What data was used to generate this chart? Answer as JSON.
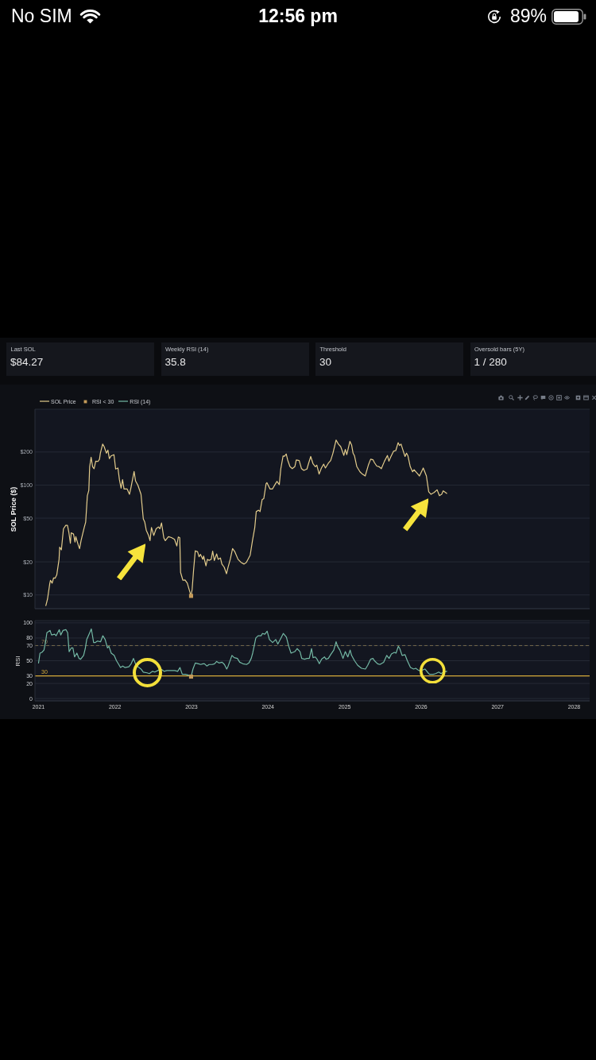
{
  "chart_data": [
    {
      "type": "other",
      "annotations": [
        "No SIM",
        "12:56 pm",
        "89%"
      ]
    },
    {
      "type": "other",
      "categories": [
        "Last SOL",
        "Weekly RSI (14)",
        "Threshold",
        "Oversold bars (5Y)"
      ],
      "value_labels": [
        "$84.27",
        "35.8",
        "30",
        "1 / 280"
      ]
    },
    {
      "type": "line",
      "ylabel": "SOL Price ($)",
      "log": "y",
      "xlim": [
        "2020-12-15",
        "2028-03-15"
      ],
      "ylim": [
        7.5,
        490
      ],
      "yticks": [
        {
          "value": 10,
          "label": "$10"
        },
        {
          "value": 20,
          "label": "$20"
        },
        {
          "value": 50,
          "label": "$50"
        },
        {
          "value": 100,
          "label": "$100"
        },
        {
          "value": 200,
          "label": "$200"
        }
      ],
      "grid": "y",
      "legend": "top left",
      "tick_labels": "y",
      "series": [
        {
          "name": "SOL Price",
          "color": "#e3cc8c",
          "x": [
            "2021-02-05",
            "2021-02-13",
            "2021-02-24",
            "2021-02-27",
            "2021-03-07",
            "2021-03-14",
            "2021-03-21",
            "2021-03-29",
            "2021-04-09",
            "2021-04-12",
            "2021-04-20",
            "2021-04-30",
            "2021-05-11",
            "2021-05-19",
            "2021-05-26",
            "2021-06-02",
            "2021-06-06",
            "2021-06-17",
            "2021-06-24",
            "2021-06-28",
            "2021-07-09",
            "2021-07-16",
            "2021-07-23",
            "2021-08-07",
            "2021-08-14",
            "2021-08-22",
            "2021-08-29",
            "2021-09-02",
            "2021-09-09",
            "2021-09-16",
            "2021-09-23",
            "2021-10-01",
            "2021-10-12",
            "2021-10-19",
            "2021-10-23",
            "2021-11-03",
            "2021-11-10",
            "2021-11-21",
            "2021-11-28",
            "2021-12-05",
            "2021-12-13",
            "2021-12-27",
            "2022-01-04",
            "2022-01-15",
            "2022-01-22",
            "2022-01-30",
            "2022-02-06",
            "2022-02-13",
            "2022-02-28",
            "2022-03-11",
            "2022-03-18",
            "2022-04-02",
            "2022-04-09",
            "2022-04-20",
            "2022-05-05",
            "2022-05-16",
            "2022-05-23",
            "2022-05-30",
            "2022-06-10",
            "2022-06-17",
            "2022-06-24",
            "2022-07-05",
            "2022-07-16",
            "2022-07-27",
            "2022-08-03",
            "2022-08-11",
            "2022-08-22",
            "2022-08-29",
            "2022-09-13",
            "2022-09-27",
            "2022-10-12",
            "2022-10-23",
            "2022-10-30",
            "2022-11-06",
            "2022-11-10",
            "2022-11-21",
            "2022-12-01",
            "2022-12-12",
            "2022-12-19",
            "2022-12-30",
            "2023-01-04",
            "2023-01-11",
            "2023-01-19",
            "2023-01-30",
            "2023-02-06",
            "2023-02-13",
            "2023-02-24",
            "2023-02-28",
            "2023-03-11",
            "2023-03-18",
            "2023-03-26",
            "2023-04-05",
            "2023-04-12",
            "2023-04-20",
            "2023-05-01",
            "2023-05-08",
            "2023-05-19",
            "2023-05-26",
            "2023-06-06",
            "2023-06-17",
            "2023-06-24",
            "2023-07-05",
            "2023-07-16",
            "2023-07-27",
            "2023-08-11",
            "2023-08-25",
            "2023-09-09",
            "2023-09-20",
            "2023-10-01",
            "2023-10-08",
            "2023-10-19",
            "2023-10-30",
            "2023-11-06",
            "2023-11-17",
            "2023-11-24",
            "2023-12-04",
            "2023-12-12",
            "2023-12-23",
            "2023-12-27",
            "2024-01-11",
            "2024-01-22",
            "2024-02-06",
            "2024-02-13",
            "2024-02-24",
            "2024-03-02",
            "2024-03-13",
            "2024-03-20",
            "2024-03-28",
            "2024-04-04",
            "2024-04-15",
            "2024-04-26",
            "2024-05-08",
            "2024-05-15",
            "2024-05-29",
            "2024-06-09",
            "2024-06-20",
            "2024-07-05",
            "2024-07-12",
            "2024-07-23",
            "2024-08-03",
            "2024-08-14",
            "2024-08-21",
            "2024-09-01",
            "2024-09-12",
            "2024-09-23",
            "2024-10-01",
            "2024-10-15",
            "2024-10-26",
            "2024-11-06",
            "2024-11-21",
            "2024-12-02",
            "2024-12-13",
            "2024-12-28",
            "2025-01-04",
            "2025-01-11",
            "2025-01-26",
            "2025-02-03",
            "2025-02-10",
            "2025-02-17",
            "2025-02-28",
            "2025-03-15",
            "2025-03-26",
            "2025-04-09",
            "2025-04-24",
            "2025-05-05",
            "2025-05-16",
            "2025-05-23",
            "2025-06-03",
            "2025-06-14",
            "2025-06-25",
            "2025-07-10",
            "2025-07-24",
            "2025-07-31",
            "2025-08-08",
            "2025-08-22",
            "2025-09-02",
            "2025-09-13",
            "2025-09-20",
            "2025-09-27",
            "2025-10-05",
            "2025-10-16",
            "2025-10-23",
            "2025-10-30",
            "2025-11-10",
            "2025-11-21",
            "2025-11-28",
            "2025-12-13",
            "2025-12-24",
            "2026-01-11",
            "2026-01-26",
            "2026-02-06",
            "2026-02-17",
            "2026-03-04",
            "2026-03-18",
            "2026-03-29",
            "2026-04-09",
            "2026-04-16",
            "2026-04-27",
            "2026-05-03"
          ],
          "values": [
            8.0,
            9.2,
            12.8,
            13.6,
            12.8,
            14.3,
            14.2,
            15.2,
            21.1,
            27.2,
            25.7,
            40,
            43,
            43,
            36.8,
            29.5,
            36.8,
            35.8,
            30.3,
            33.9,
            28.7,
            26.4,
            31.2,
            41.1,
            46,
            80,
            89.5,
            147,
            179,
            147,
            141,
            165,
            164,
            172,
            195,
            236,
            224,
            195,
            208,
            174,
            184,
            189,
            140,
            143,
            112,
            93.5,
            112,
            92,
            92,
            82.4,
            94.6,
            133,
            109,
            100,
            82.4,
            49.2,
            46,
            38.9,
            34.8,
            31.2,
            41.1,
            34.8,
            40,
            41.6,
            40,
            45.2,
            33,
            31.2,
            33.9,
            33.3,
            32.1,
            27.9,
            33.7,
            33.1,
            16,
            13.6,
            13.7,
            12.8,
            11.5,
            9.8,
            11.2,
            16.9,
            25.2,
            24.7,
            22.3,
            23.4,
            21.1,
            22.6,
            18.4,
            21.1,
            20.6,
            21.1,
            25,
            20.6,
            23.6,
            21.1,
            21.7,
            19.1,
            17.9,
            15.6,
            17.7,
            21.1,
            26.4,
            24.7,
            21.1,
            19.8,
            19.1,
            19.8,
            21.7,
            23,
            31.2,
            41.1,
            57.4,
            59,
            57.4,
            73.6,
            75.3,
            103,
            105,
            92,
            92,
            103,
            108,
            101,
            140,
            184,
            183,
            192,
            169,
            147,
            141,
            147,
            169,
            167,
            141,
            136,
            140,
            156,
            182,
            156,
            147,
            152,
            126,
            143,
            155,
            143,
            158,
            167,
            195,
            257,
            236,
            224,
            186,
            211,
            189,
            250,
            232,
            195,
            184,
            147,
            132,
            126,
            121,
            152,
            172,
            170,
            160,
            149,
            147,
            141,
            165,
            186,
            165,
            179,
            203,
            206,
            243,
            229,
            236,
            211,
            182,
            195,
            184,
            147,
            132,
            138,
            128,
            121,
            143,
            121,
            87,
            82.4,
            85.6,
            90.6,
            80,
            82.4,
            88.6,
            85.6,
            84
          ]
        },
        {
          "name": "RSI < 30",
          "type": "scatter",
          "marker": "square",
          "color": "#c49a5a",
          "x": [
            "2022-12-30"
          ],
          "values": [
            9.8
          ]
        }
      ]
    },
    {
      "type": "line",
      "ylabel": "RSI",
      "xlim": [
        "2020-12-15",
        "2028-03-15"
      ],
      "xticks": [
        "2021",
        "2022",
        "2023",
        "2024",
        "2025",
        "2026",
        "2027",
        "2028"
      ],
      "ylim": [
        -3,
        103
      ],
      "yticks": [
        0,
        20,
        30,
        50,
        70,
        80,
        100
      ],
      "grid": "y",
      "legend": "top left",
      "ref_lines": [
        {
          "axis": "y",
          "value": 70,
          "label": "70",
          "color": "#8c7a52",
          "line_style": "dashed"
        },
        {
          "axis": "y",
          "value": 30,
          "label": "30",
          "color": "#d6ab3a"
        }
      ],
      "series": [
        {
          "name": "RSI (14)",
          "color": "#74b9a5",
          "x": [
            "2021-01-01",
            "2021-01-08",
            "2021-01-17",
            "2021-01-27",
            "2021-02-03",
            "2021-02-10",
            "2021-02-25",
            "2021-03-04",
            "2021-03-19",
            "2021-03-26",
            "2021-04-10",
            "2021-04-17",
            "2021-04-28",
            "2021-05-12",
            "2021-05-20",
            "2021-05-27",
            "2021-06-07",
            "2021-06-14",
            "2021-06-22",
            "2021-07-03",
            "2021-07-13",
            "2021-07-21",
            "2021-08-04",
            "2021-08-12",
            "2021-08-19",
            "2021-08-30",
            "2021-09-10",
            "2021-09-21",
            "2021-09-28",
            "2021-10-09",
            "2021-10-24",
            "2021-11-04",
            "2021-11-15",
            "2021-11-26",
            "2021-12-03",
            "2021-12-14",
            "2021-12-28",
            "2022-01-08",
            "2022-01-19",
            "2022-01-27",
            "2022-02-07",
            "2022-02-17",
            "2022-03-08",
            "2022-03-19",
            "2022-03-30",
            "2022-04-10",
            "2022-04-21",
            "2022-05-05",
            "2022-05-16",
            "2022-06-03",
            "2022-06-14",
            "2022-06-29",
            "2022-07-10",
            "2022-07-24",
            "2022-08-08",
            "2022-08-23",
            "2022-09-06",
            "2022-09-24",
            "2022-10-13",
            "2022-10-27",
            "2022-11-07",
            "2022-11-18",
            "2022-12-03",
            "2022-12-17",
            "2022-12-30",
            "2023-01-08",
            "2023-01-19",
            "2023-02-03",
            "2023-02-14",
            "2023-02-25",
            "2023-03-04",
            "2023-03-15",
            "2023-03-26",
            "2023-04-10",
            "2023-04-21",
            "2023-05-01",
            "2023-05-12",
            "2023-05-27",
            "2023-06-07",
            "2023-06-18",
            "2023-06-25",
            "2023-07-13",
            "2023-07-24",
            "2023-08-08",
            "2023-08-19",
            "2023-09-03",
            "2023-09-21",
            "2023-10-02",
            "2023-10-13",
            "2023-10-20",
            "2023-11-04",
            "2023-11-15",
            "2023-11-29",
            "2023-12-06",
            "2023-12-17",
            "2023-12-28",
            "2024-01-08",
            "2024-01-23",
            "2024-02-07",
            "2024-02-17",
            "2024-03-03",
            "2024-03-14",
            "2024-03-29",
            "2024-04-09",
            "2024-04-20",
            "2024-05-08",
            "2024-05-19",
            "2024-06-02",
            "2024-06-10",
            "2024-06-24",
            "2024-07-05",
            "2024-07-16",
            "2024-07-27",
            "2024-08-03",
            "2024-08-14",
            "2024-08-22",
            "2024-09-02",
            "2024-09-13",
            "2024-09-27",
            "2024-10-04",
            "2024-10-15",
            "2024-10-26",
            "2024-11-10",
            "2024-11-21",
            "2024-11-28",
            "2024-12-09",
            "2024-12-24",
            "2025-01-04",
            "2025-01-16",
            "2025-01-27",
            "2025-02-03",
            "2025-02-17",
            "2025-03-04",
            "2025-03-22",
            "2025-04-10",
            "2025-04-21",
            "2025-05-05",
            "2025-05-16",
            "2025-05-23",
            "2025-06-07",
            "2025-06-18",
            "2025-07-06",
            "2025-07-21",
            "2025-08-01",
            "2025-08-12",
            "2025-08-26",
            "2025-09-03",
            "2025-09-14",
            "2025-09-21",
            "2025-10-02",
            "2025-10-16",
            "2025-10-27",
            "2025-11-11",
            "2025-11-26",
            "2025-12-06",
            "2025-12-21",
            "2026-01-01",
            "2026-01-19",
            "2026-02-03",
            "2026-02-10",
            "2026-02-28",
            "2026-03-11",
            "2026-03-26",
            "2026-04-06",
            "2026-04-17",
            "2026-05-03"
          ],
          "values": [
            47,
            60,
            61,
            64,
            74,
            87,
            90,
            84,
            85,
            83,
            91,
            84,
            90,
            91,
            87,
            62,
            67,
            67,
            55,
            60,
            53,
            52,
            57,
            66,
            78,
            85,
            92,
            74,
            74,
            76,
            75,
            83,
            78,
            67,
            69,
            60,
            57,
            50,
            45,
            41,
            43,
            41,
            42,
            46,
            53,
            45,
            42,
            39,
            35,
            34,
            33,
            36,
            35,
            37,
            39,
            36,
            37,
            37,
            37,
            36,
            41,
            32,
            32,
            31,
            29,
            39,
            47,
            46,
            45,
            46,
            46,
            43,
            45,
            45,
            46,
            49,
            47,
            48,
            45,
            39,
            43,
            57,
            54,
            53,
            48,
            46,
            45,
            47,
            53,
            60,
            80,
            83,
            83,
            86,
            85,
            89,
            78,
            74,
            78,
            72,
            80,
            86,
            81,
            69,
            60,
            62,
            66,
            62,
            53,
            52,
            53,
            53,
            66,
            54,
            55,
            52,
            46,
            52,
            55,
            52,
            53,
            58,
            64,
            75,
            69,
            64,
            53,
            62,
            55,
            64,
            57,
            50,
            44,
            40,
            39,
            44,
            52,
            53,
            50,
            46,
            45,
            48,
            57,
            53,
            59,
            61,
            60,
            69,
            66,
            57,
            58,
            50,
            41,
            39,
            40,
            37,
            37,
            39,
            34,
            32,
            32,
            33,
            35,
            33,
            35,
            36
          ]
        },
        {
          "type": "scatter",
          "marker": "square",
          "color": "#c49a5a",
          "x": [
            "2022-12-30"
          ],
          "values": [
            29
          ]
        }
      ]
    }
  ]
}
